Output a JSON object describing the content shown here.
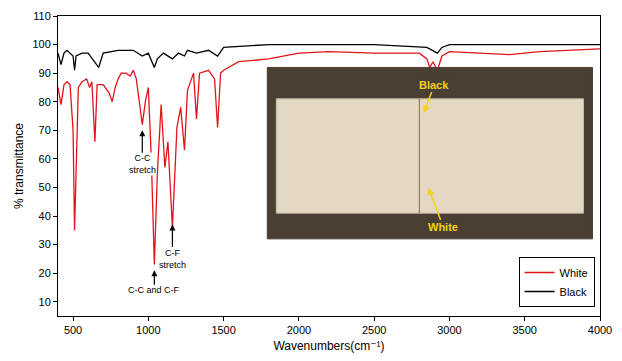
{
  "chart_data": {
    "type": "line",
    "x_label": "Wavenumbers(cm⁻¹)",
    "y_label": "% transmittance",
    "xlim": [
      400,
      4000
    ],
    "xticks": [
      500,
      1000,
      1500,
      2000,
      2500,
      3000,
      3500,
      4000
    ],
    "ylim": [
      5,
      110
    ],
    "yticks": [
      10,
      20,
      30,
      40,
      50,
      60,
      70,
      80,
      90,
      100,
      110
    ],
    "grid": false,
    "legend": "lower right",
    "series": [
      {
        "name": "White",
        "color": "#e3131b",
        "x": [
          400,
          420,
          440,
          460,
          480,
          500,
          510,
          520,
          535,
          560,
          590,
          610,
          625,
          645,
          660,
          700,
          740,
          760,
          780,
          800,
          820,
          850,
          880,
          900,
          920,
          940,
          960,
          980,
          1000,
          1020,
          1040,
          1060,
          1085,
          1110,
          1130,
          1160,
          1190,
          1215,
          1240,
          1260,
          1300,
          1320,
          1340,
          1400,
          1440,
          1460,
          1480,
          1500,
          1600,
          1800,
          2000,
          2200,
          2500,
          2800,
          2850,
          2870,
          2890,
          2920,
          2950,
          3000,
          3200,
          3400,
          3600,
          3800,
          4000
        ],
        "values": [
          85,
          79,
          86,
          87,
          86,
          70,
          35,
          60,
          85,
          87,
          88,
          85,
          87,
          66,
          86,
          86,
          83,
          80,
          85,
          88,
          90,
          90,
          89,
          91,
          88,
          80,
          72,
          80,
          85,
          60,
          23,
          55,
          79,
          57,
          66,
          36,
          71,
          78,
          63,
          84,
          90,
          74,
          90,
          91,
          88,
          71,
          90,
          91,
          94,
          95,
          97,
          97.5,
          97,
          97,
          95,
          92,
          94,
          91,
          96,
          97.5,
          97,
          96.5,
          97.5,
          98,
          98.5
        ]
      },
      {
        "name": "Black",
        "color": "#000000",
        "x": [
          400,
          420,
          440,
          460,
          500,
          510,
          520,
          560,
          600,
          645,
          670,
          700,
          800,
          900,
          960,
          1000,
          1040,
          1060,
          1100,
          1160,
          1200,
          1240,
          1260,
          1320,
          1400,
          1460,
          1500,
          1800,
          2500,
          2850,
          2920,
          2950,
          3000,
          4000
        ],
        "values": [
          97,
          93,
          97,
          98,
          96,
          91,
          96,
          97,
          97,
          94,
          92,
          97,
          98,
          98,
          96,
          97,
          92,
          95,
          97,
          95,
          97,
          96,
          98,
          97,
          98,
          96,
          99,
          100,
          100,
          99,
          97,
          99,
          100,
          100
        ]
      }
    ],
    "annotations": [
      {
        "text": "C-C\nstretch",
        "x": 960,
        "y": 70
      },
      {
        "text": "C-C and C-F",
        "x": 1040,
        "y": 21
      },
      {
        "text": "C-F\nstretch",
        "x": 1160,
        "y": 37
      }
    ],
    "inset_labels": [
      "Black",
      "White"
    ]
  }
}
